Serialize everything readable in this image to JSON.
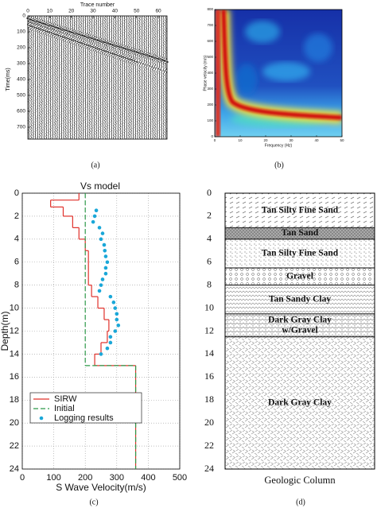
{
  "chart_data": [
    {
      "type": "seismic",
      "caption": "(a)",
      "xlabel": "Trace number",
      "ylabel": "Time(ms)",
      "xlim": [
        0,
        64
      ],
      "xticks": [
        0,
        10,
        20,
        30,
        40,
        50,
        60
      ],
      "ylim": [
        0,
        775
      ],
      "yticks": [
        0,
        100,
        200,
        300,
        400,
        500,
        600,
        700
      ]
    },
    {
      "type": "heatmap",
      "caption": "(b)",
      "xlabel": "Frequency (Hz)",
      "ylabel": "Phase velocity (m/s)",
      "xlim": [
        0,
        50
      ],
      "xticks": [
        0,
        10,
        20,
        30,
        40,
        50
      ],
      "ylim": [
        0,
        800
      ],
      "yticks": [
        0,
        100,
        200,
        300,
        400,
        500,
        600,
        700,
        800
      ]
    },
    {
      "type": "line",
      "title": "Vs model",
      "caption": "(c)",
      "xlabel": "S Wave Velocity(m/s)",
      "ylabel": "Depth(m)",
      "xlim": [
        0,
        500
      ],
      "xticks": [
        0,
        100,
        200,
        300,
        400,
        500
      ],
      "ylim": [
        0,
        24
      ],
      "yticks": [
        0,
        2,
        4,
        6,
        8,
        10,
        12,
        14,
        16,
        18,
        20,
        22,
        24
      ],
      "grid": true,
      "legend": "lower left",
      "series": [
        {
          "name": "SIRW",
          "color": "#e0302a",
          "style": "step",
          "bins": [
            0,
            0.6,
            1.2,
            2,
            3,
            4,
            5,
            8,
            9,
            10,
            11,
            12,
            13,
            14,
            15,
            24
          ],
          "values": [
            180,
            90,
            130,
            160,
            180,
            200,
            210,
            220,
            240,
            260,
            275,
            270,
            250,
            230,
            360
          ]
        },
        {
          "name": "Initial",
          "color": "#2e9a4a",
          "style": "dashed-step",
          "bins": [
            0,
            15,
            24
          ],
          "values": [
            200,
            360
          ]
        },
        {
          "name": "Logging results",
          "color": "#1aa7d8",
          "style": "markers",
          "y": [
            1.5,
            2,
            2.5,
            3,
            3.5,
            4,
            4.5,
            5,
            5.5,
            6,
            6.5,
            7,
            7.5,
            8,
            8.5,
            9,
            9.5,
            10,
            10.5,
            11,
            11.5,
            12,
            12.5,
            13,
            13.5,
            14
          ],
          "values": [
            235,
            230,
            225,
            245,
            255,
            250,
            260,
            262,
            265,
            270,
            265,
            265,
            255,
            250,
            245,
            280,
            290,
            295,
            300,
            300,
            305,
            295,
            280,
            280,
            270,
            250
          ]
        }
      ]
    },
    {
      "type": "column",
      "caption": "(d)",
      "xlabel": "Geologic Column",
      "ylim": [
        0,
        24
      ],
      "yticks": [
        0,
        2,
        4,
        6,
        8,
        10,
        12,
        14,
        16,
        18,
        20,
        22,
        24
      ],
      "layers": [
        {
          "name": [
            "Tan Silty Fine Sand"
          ],
          "top": 0,
          "bottom": 3
        },
        {
          "name": [
            "Tan Sand"
          ],
          "top": 3,
          "bottom": 4
        },
        {
          "name": [
            "Tan Silty Fine Sand"
          ],
          "top": 4,
          "bottom": 6.5
        },
        {
          "name": [
            "Gravel"
          ],
          "top": 6.5,
          "bottom": 8
        },
        {
          "name": [
            "Tan Sandy Clay"
          ],
          "top": 8,
          "bottom": 10.5
        },
        {
          "name": [
            "Dark Gray Clay",
            "w/Gravel"
          ],
          "top": 10.5,
          "bottom": 12.5
        },
        {
          "name": [
            "Dark Gray Clay"
          ],
          "top": 12.5,
          "bottom": 24
        }
      ]
    }
  ]
}
